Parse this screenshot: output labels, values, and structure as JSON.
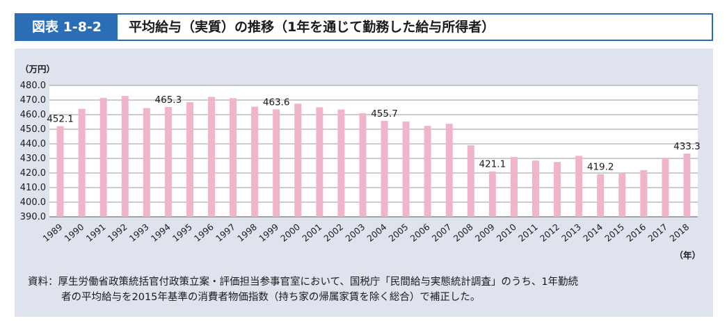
{
  "header": {
    "figure_label": "図表 1-8-2",
    "title": "平均給与（実質）の推移（1年を通じて勤務した給与所得者）"
  },
  "source": {
    "line1": "資料：厚生労働省政策統括官付政策立案・評価担当参事官室において、国税庁「民間給与実態統計調査」のうち、1年勤続",
    "line2": "者の平均給与を2015年基準の消費者物価指数（持ち家の帰属家賃を除く総合）で補正した。"
  },
  "colors": {
    "accent": "#2a6fb6",
    "bar": "#f0b4cd",
    "panel": "#dfe3ed"
  },
  "chart_data": {
    "type": "bar",
    "y_unit_label": "（万円）",
    "x_unit_label": "（年）",
    "ylim": [
      390,
      480
    ],
    "yticks": [
      "390.0",
      "400.0",
      "410.0",
      "420.0",
      "430.0",
      "440.0",
      "450.0",
      "460.0",
      "470.0",
      "480.0"
    ],
    "categories": [
      "1989",
      "1990",
      "1991",
      "1992",
      "1993",
      "1994",
      "1995",
      "1996",
      "1997",
      "1998",
      "1999",
      "2000",
      "2001",
      "2002",
      "2003",
      "2004",
      "2005",
      "2006",
      "2007",
      "2008",
      "2009",
      "2010",
      "2011",
      "2012",
      "2013",
      "2014",
      "2015",
      "2016",
      "2017",
      "2018"
    ],
    "values": [
      452.1,
      464.0,
      471.5,
      472.8,
      464.5,
      465.3,
      468.5,
      472.2,
      471.3,
      465.5,
      463.6,
      467.5,
      465.0,
      463.5,
      461.0,
      455.7,
      455.3,
      452.3,
      453.7,
      439.0,
      421.1,
      431.0,
      428.5,
      427.5,
      431.8,
      419.2,
      420.0,
      422.0,
      430.0,
      433.3
    ],
    "data_labels": [
      {
        "index": 0,
        "text": "452.1"
      },
      {
        "index": 5,
        "text": "465.3"
      },
      {
        "index": 10,
        "text": "463.6"
      },
      {
        "index": 15,
        "text": "455.7"
      },
      {
        "index": 20,
        "text": "421.1"
      },
      {
        "index": 25,
        "text": "419.2"
      },
      {
        "index": 29,
        "text": "433.3"
      }
    ],
    "grid": true
  }
}
